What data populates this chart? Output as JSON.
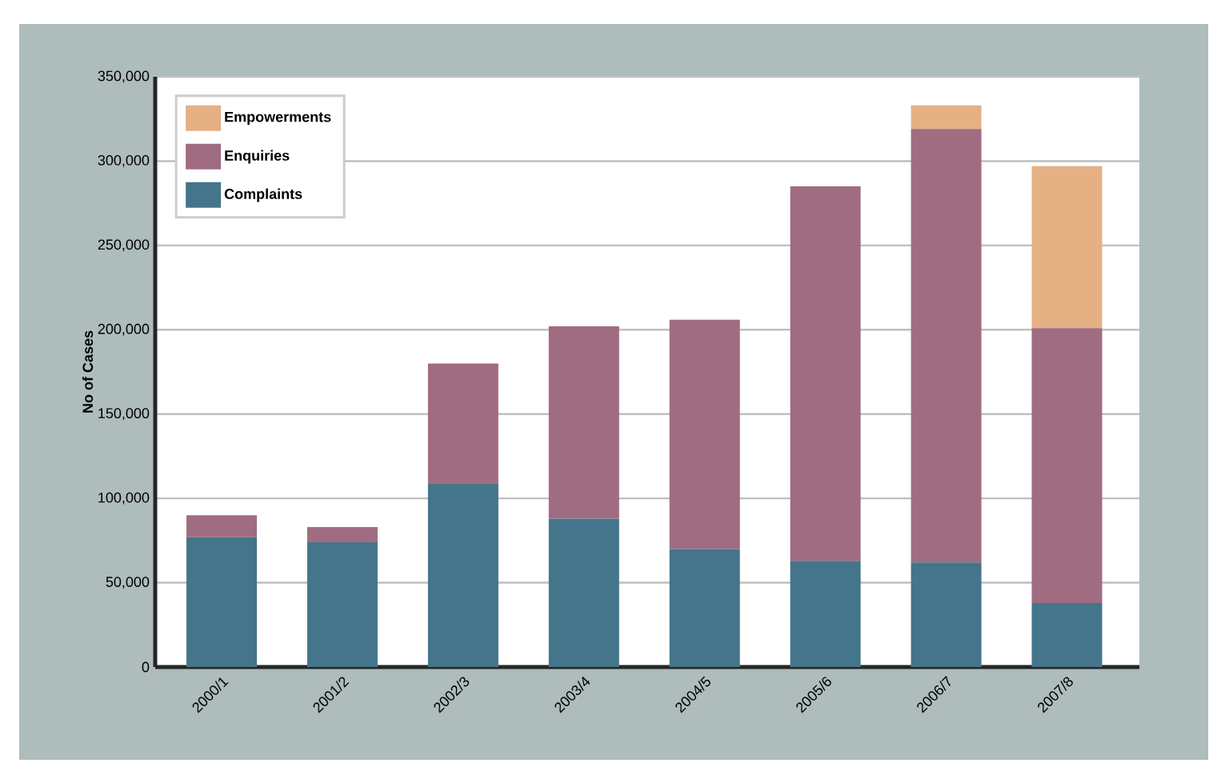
{
  "chart_data": {
    "type": "bar",
    "stacked": true,
    "ylabel": "No of Cases",
    "categories": [
      "2000/1",
      "2001/2",
      "2002/3",
      "2003/4",
      "2004/5",
      "2005/6",
      "2006/7",
      "2007/8"
    ],
    "series": [
      {
        "name": "Complaints",
        "color": "#44758a",
        "values": [
          77000,
          74000,
          109000,
          88000,
          70000,
          63000,
          62000,
          38000
        ]
      },
      {
        "name": "Enquiries",
        "color": "#a06c82",
        "values": [
          13000,
          9000,
          71000,
          114000,
          136000,
          222000,
          257000,
          163000
        ]
      },
      {
        "name": "Empowerments",
        "color": "#e5b084",
        "values": [
          null,
          null,
          null,
          null,
          null,
          null,
          14000,
          96000
        ]
      }
    ],
    "ylim": [
      0,
      350000
    ],
    "yticks": [
      {
        "value": 0,
        "label": "0"
      },
      {
        "value": 50000,
        "label": "50,000"
      },
      {
        "value": 100000,
        "label": "100,000"
      },
      {
        "value": 150000,
        "label": "150,000"
      },
      {
        "value": 200000,
        "label": "200,000"
      },
      {
        "value": 250000,
        "label": "250,000"
      },
      {
        "value": 300000,
        "label": "300,000"
      },
      {
        "value": 350000,
        "label": "350,000"
      }
    ],
    "grid": "y",
    "legend": "top left"
  }
}
